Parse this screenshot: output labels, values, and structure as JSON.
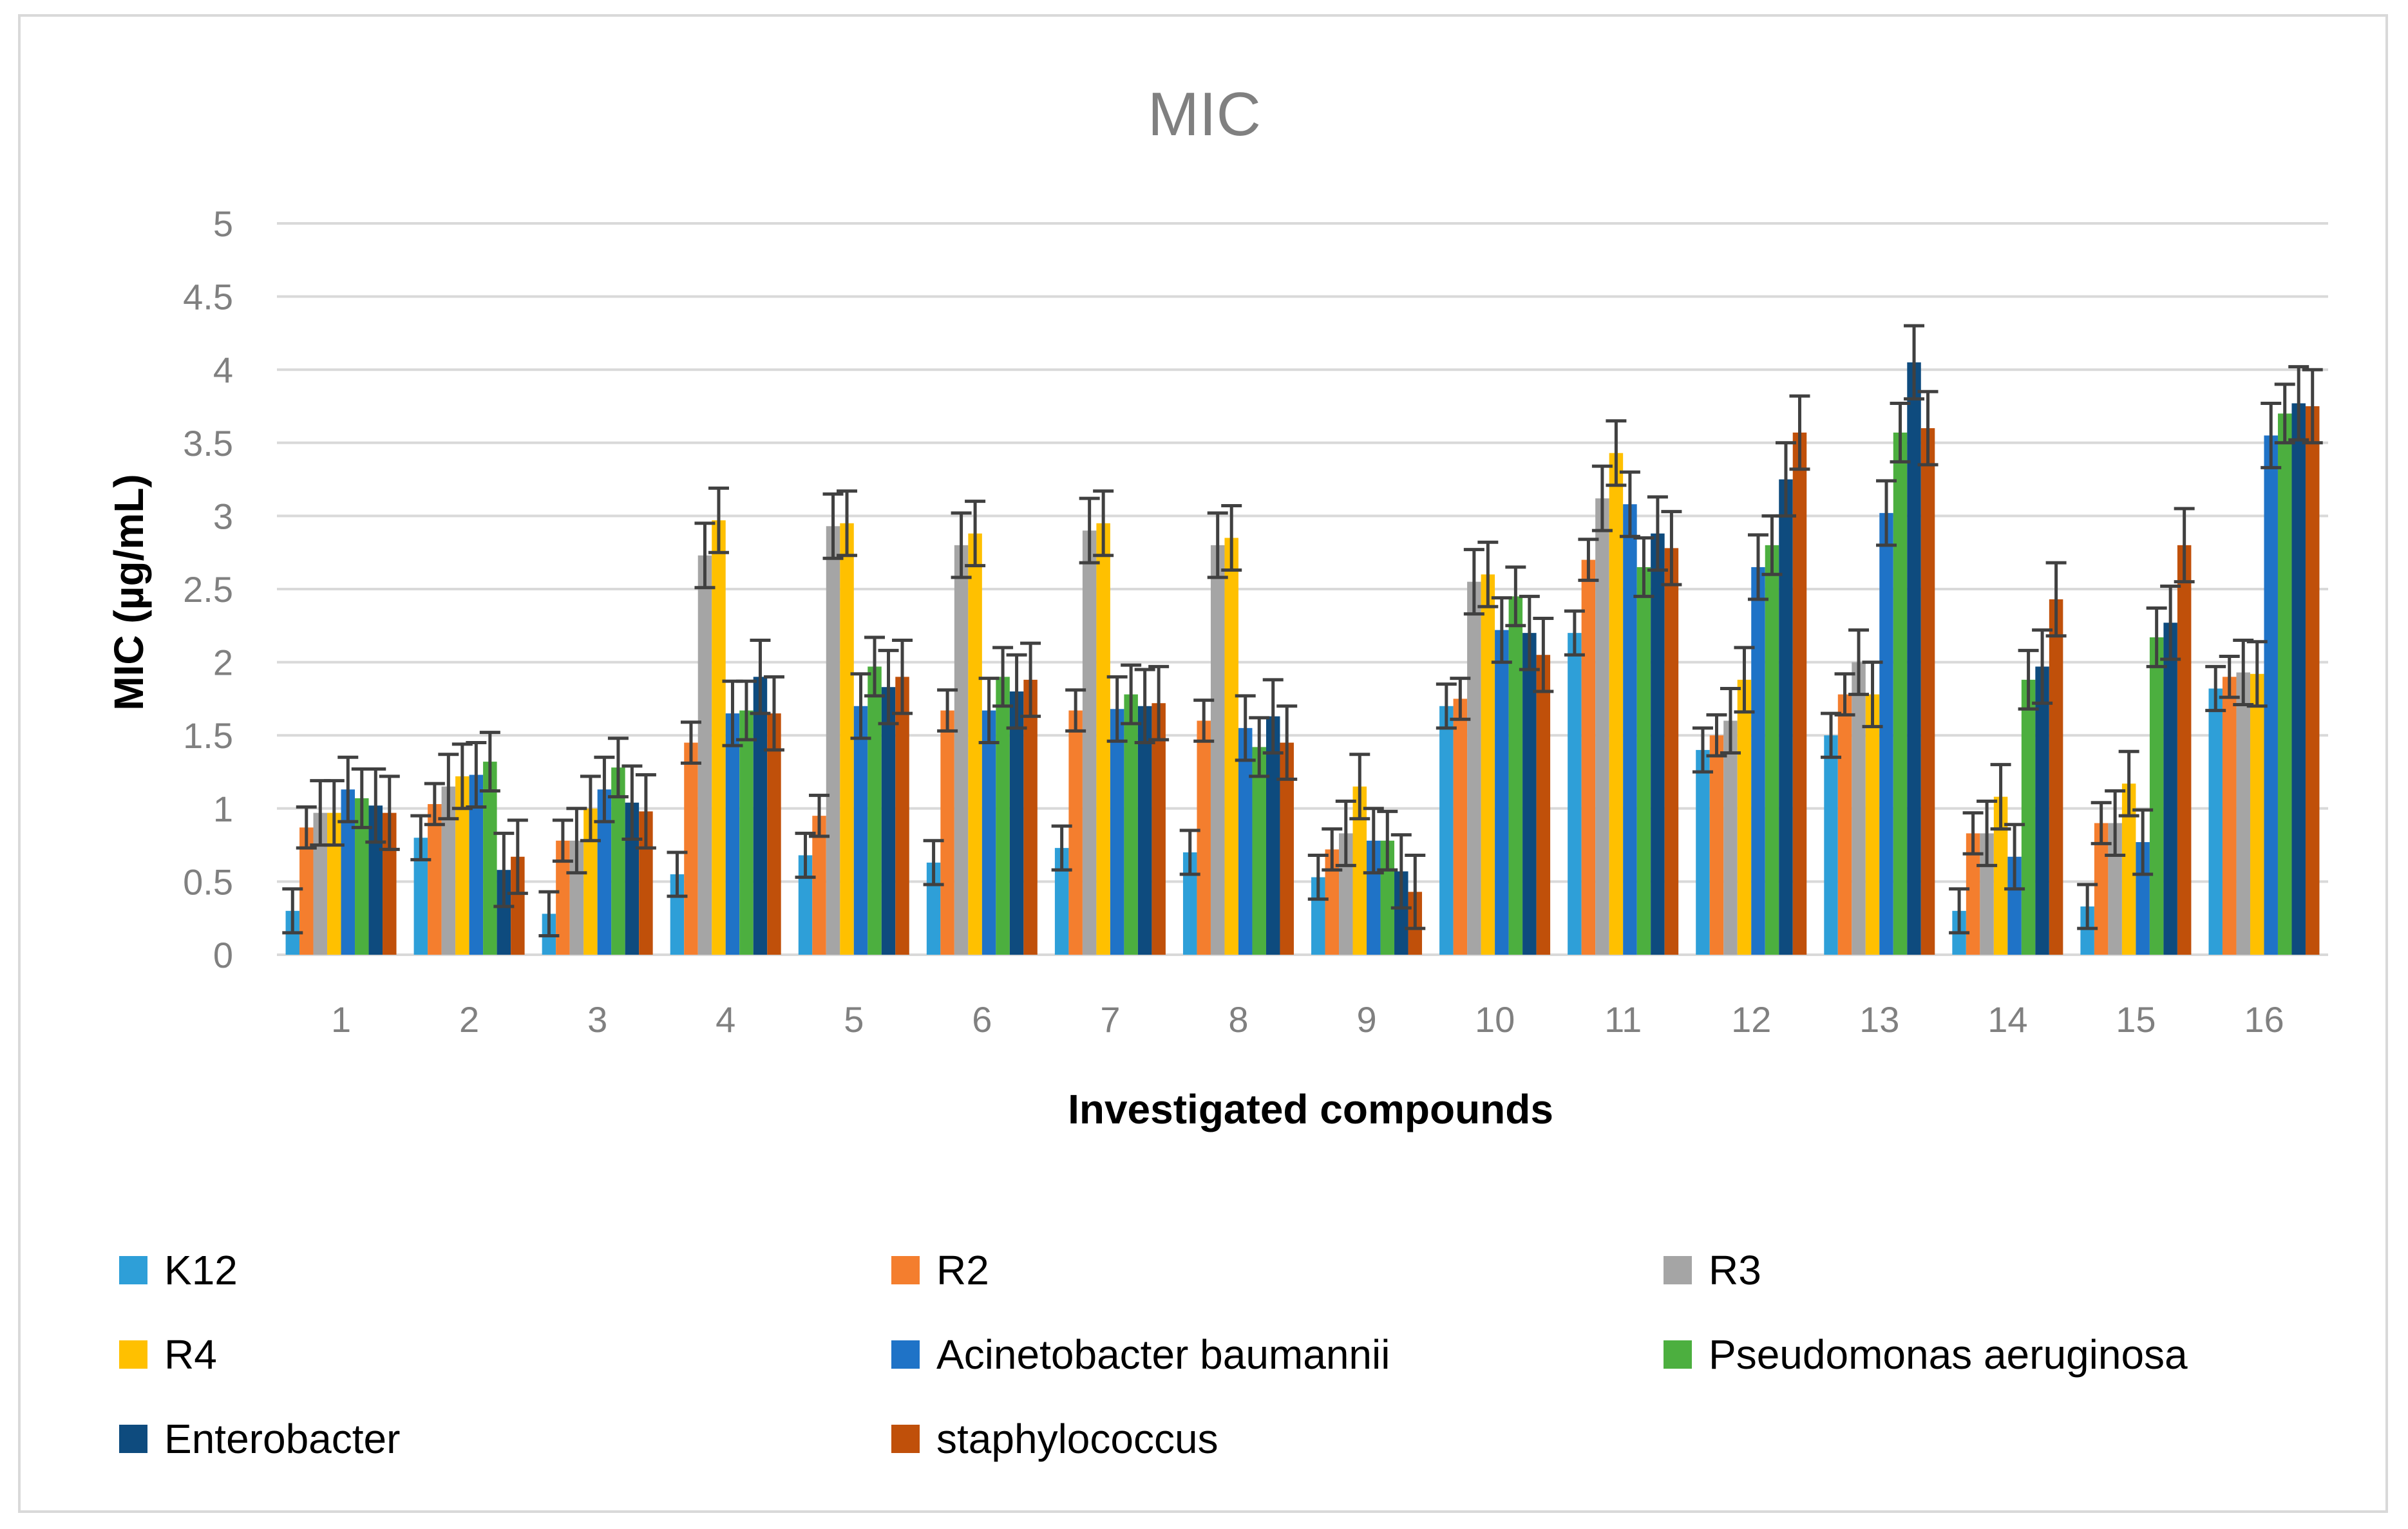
{
  "chart_data": {
    "type": "bar",
    "title": "MIC",
    "xlabel": "Investigated compounds",
    "ylabel": "MIC (µg/mL)",
    "ylim": [
      0,
      5
    ],
    "yticks": [
      "0",
      "0.5",
      "1",
      "1.5",
      "2",
      "2.5",
      "3",
      "3.5",
      "4",
      "4.5",
      "5"
    ],
    "grid": true,
    "legend_position": "bottom",
    "categories": [
      "1",
      "2",
      "3",
      "4",
      "5",
      "6",
      "7",
      "8",
      "9",
      "10",
      "11",
      "12",
      "13",
      "14",
      "15",
      "16"
    ],
    "series": [
      {
        "name": "K12",
        "color": "#2E9FD8",
        "values": [
          0.3,
          0.8,
          0.28,
          0.55,
          0.68,
          0.63,
          0.73,
          0.7,
          0.53,
          1.7,
          2.2,
          1.4,
          1.5,
          0.3,
          0.33,
          1.82
        ],
        "errors": [
          0.15,
          0.15,
          0.15,
          0.15,
          0.15,
          0.15,
          0.15,
          0.15,
          0.15,
          0.15,
          0.15,
          0.15,
          0.15,
          0.15,
          0.15,
          0.15
        ]
      },
      {
        "name": "R2",
        "color": "#F47E2E",
        "values": [
          0.87,
          1.03,
          0.78,
          1.45,
          0.95,
          1.67,
          1.67,
          1.6,
          0.72,
          1.75,
          2.7,
          1.5,
          1.78,
          0.83,
          0.9,
          1.9
        ],
        "errors": [
          0.14,
          0.14,
          0.14,
          0.14,
          0.14,
          0.14,
          0.14,
          0.14,
          0.14,
          0.14,
          0.14,
          0.14,
          0.14,
          0.14,
          0.14,
          0.14
        ]
      },
      {
        "name": "R3",
        "color": "#A5A5A5",
        "values": [
          0.97,
          1.15,
          0.78,
          2.73,
          2.93,
          2.8,
          2.9,
          2.8,
          0.83,
          2.55,
          3.12,
          1.6,
          2.0,
          0.83,
          0.9,
          1.93
        ],
        "errors": [
          0.22,
          0.22,
          0.22,
          0.22,
          0.22,
          0.22,
          0.22,
          0.22,
          0.22,
          0.22,
          0.22,
          0.22,
          0.22,
          0.22,
          0.22,
          0.22
        ]
      },
      {
        "name": "R4",
        "color": "#FFC000",
        "values": [
          0.97,
          1.22,
          1.0,
          2.97,
          2.95,
          2.88,
          2.95,
          2.85,
          1.15,
          2.6,
          3.43,
          1.88,
          1.78,
          1.08,
          1.17,
          1.92
        ],
        "errors": [
          0.22,
          0.22,
          0.22,
          0.22,
          0.22,
          0.22,
          0.22,
          0.22,
          0.22,
          0.22,
          0.22,
          0.22,
          0.22,
          0.22,
          0.22,
          0.22
        ]
      },
      {
        "name": "Acinetobacter baumannii",
        "color": "#1F73C7",
        "values": [
          1.13,
          1.23,
          1.13,
          1.65,
          1.7,
          1.67,
          1.68,
          1.55,
          0.78,
          2.22,
          3.08,
          2.65,
          3.02,
          0.67,
          0.77,
          3.55
        ],
        "errors": [
          0.22,
          0.22,
          0.22,
          0.22,
          0.22,
          0.22,
          0.22,
          0.22,
          0.22,
          0.22,
          0.22,
          0.22,
          0.22,
          0.22,
          0.22,
          0.22
        ]
      },
      {
        "name": "Pseudomonas aeruginosa",
        "color": "#4CAF3F",
        "values": [
          1.07,
          1.32,
          1.28,
          1.67,
          1.97,
          1.9,
          1.78,
          1.42,
          0.78,
          2.45,
          2.65,
          2.8,
          3.57,
          1.88,
          2.17,
          3.7
        ],
        "errors": [
          0.2,
          0.2,
          0.2,
          0.2,
          0.2,
          0.2,
          0.2,
          0.2,
          0.2,
          0.2,
          0.2,
          0.2,
          0.2,
          0.2,
          0.2,
          0.2
        ]
      },
      {
        "name": "Enterobacter",
        "color": "#0E4B7E",
        "values": [
          1.02,
          0.58,
          1.04,
          1.9,
          1.83,
          1.8,
          1.7,
          1.63,
          0.57,
          2.2,
          2.88,
          3.25,
          4.05,
          1.97,
          2.27,
          3.77
        ],
        "errors": [
          0.25,
          0.25,
          0.25,
          0.25,
          0.25,
          0.25,
          0.25,
          0.25,
          0.25,
          0.25,
          0.25,
          0.25,
          0.25,
          0.25,
          0.25,
          0.25
        ]
      },
      {
        "name": "staphylococcus",
        "color": "#C0500A",
        "values": [
          0.97,
          0.67,
          0.98,
          1.65,
          1.9,
          1.88,
          1.72,
          1.45,
          0.43,
          2.05,
          2.78,
          3.57,
          3.6,
          2.43,
          2.8,
          3.75
        ],
        "errors": [
          0.25,
          0.25,
          0.25,
          0.25,
          0.25,
          0.25,
          0.25,
          0.25,
          0.25,
          0.25,
          0.25,
          0.25,
          0.25,
          0.25,
          0.25,
          0.25
        ]
      }
    ]
  }
}
